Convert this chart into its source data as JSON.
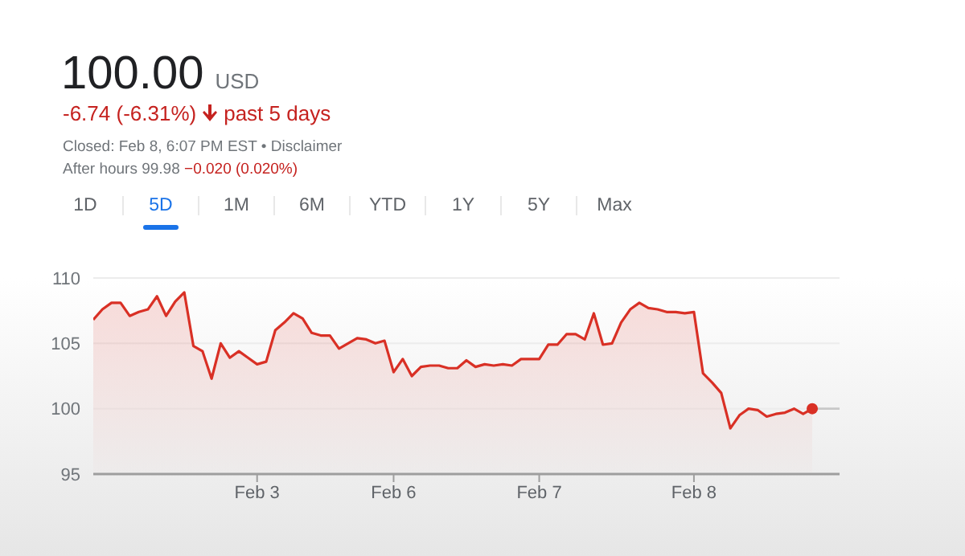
{
  "chart_data": {
    "type": "area",
    "title": "100.00",
    "subtitle": "USD",
    "annotations": [
      "-6.74 (-6.31%)",
      "past 5 days",
      "Closed: Feb 8, 6:07 PM EST • Disclaimer",
      "After hours 99.98",
      "−0.020 (0.020%)",
      "1D",
      "5D",
      "1M",
      "6M",
      "YTD",
      "1Y",
      "5Y",
      "Max"
    ],
    "categories": [
      null,
      null,
      null,
      null,
      null,
      null,
      null,
      null,
      null,
      null,
      null,
      null,
      null,
      null,
      null,
      null,
      null,
      null,
      "Feb 3",
      null,
      null,
      null,
      null,
      null,
      null,
      null,
      null,
      null,
      null,
      null,
      null,
      null,
      null,
      "Feb 6",
      null,
      null,
      null,
      null,
      null,
      null,
      null,
      null,
      null,
      null,
      null,
      null,
      null,
      null,
      null,
      "Feb 7",
      null,
      null,
      null,
      null,
      null,
      null,
      null,
      null,
      null,
      null,
      null,
      null,
      null,
      null,
      null,
      null,
      "Feb 8",
      null,
      null,
      null,
      null,
      null,
      null,
      null,
      null,
      null,
      null,
      null,
      null,
      null,
      null,
      null,
      null
    ],
    "ylim": [
      95,
      110
    ],
    "yticks": [
      95,
      100,
      105,
      110
    ],
    "grid": "y",
    "series": [
      {
        "color": "#d93025",
        "values": [
          106.8,
          107.6,
          108.1,
          108.1,
          107.1,
          107.4,
          107.6,
          108.6,
          107.1,
          108.2,
          108.9,
          104.8,
          104.4,
          102.3,
          105.0,
          103.9,
          104.4,
          103.9,
          103.4,
          103.6,
          106.0,
          106.6,
          107.3,
          106.9,
          105.8,
          105.6,
          105.6,
          104.6,
          105.0,
          105.4,
          105.3,
          105.0,
          105.2,
          102.8,
          103.8,
          102.5,
          103.2,
          103.3,
          103.3,
          103.1,
          103.1,
          103.7,
          103.2,
          103.4,
          103.3,
          103.4,
          103.3,
          103.8,
          103.8,
          103.8,
          104.9,
          104.9,
          105.7,
          105.7,
          105.3,
          107.3,
          104.9,
          105.0,
          106.6,
          107.6,
          108.1,
          107.7,
          107.6,
          107.4,
          107.4,
          107.3,
          107.4,
          102.7,
          102.0,
          101.2,
          98.5,
          99.5,
          100.0,
          99.9,
          99.4,
          99.6,
          99.7,
          100.0,
          99.6,
          100.0,
          null,
          null,
          null
        ]
      },
      {
        "type": "line",
        "color": "#c8c8c8",
        "values": [
          null,
          null,
          null,
          null,
          null,
          null,
          null,
          null,
          null,
          null,
          null,
          null,
          null,
          null,
          null,
          null,
          null,
          null,
          null,
          null,
          null,
          null,
          null,
          null,
          null,
          null,
          null,
          null,
          null,
          null,
          null,
          null,
          null,
          null,
          null,
          null,
          null,
          null,
          null,
          null,
          null,
          null,
          null,
          null,
          null,
          null,
          null,
          null,
          null,
          null,
          null,
          null,
          null,
          null,
          null,
          null,
          null,
          null,
          null,
          null,
          null,
          null,
          null,
          null,
          null,
          null,
          null,
          null,
          null,
          null,
          null,
          null,
          null,
          null,
          null,
          null,
          null,
          null,
          null,
          100,
          100,
          100,
          100
        ]
      },
      {
        "type": "scatter",
        "color": "#d93025",
        "values": [
          null,
          null,
          null,
          null,
          null,
          null,
          null,
          null,
          null,
          null,
          null,
          null,
          null,
          null,
          null,
          null,
          null,
          null,
          null,
          null,
          null,
          null,
          null,
          null,
          null,
          null,
          null,
          null,
          null,
          null,
          null,
          null,
          null,
          null,
          null,
          null,
          null,
          null,
          null,
          null,
          null,
          null,
          null,
          null,
          null,
          null,
          null,
          null,
          null,
          null,
          null,
          null,
          null,
          null,
          null,
          null,
          null,
          null,
          null,
          null,
          null,
          null,
          null,
          null,
          null,
          null,
          null,
          null,
          null,
          null,
          null,
          null,
          null,
          null,
          null,
          null,
          null,
          null,
          null,
          100,
          null,
          null,
          null
        ]
      }
    ]
  }
}
